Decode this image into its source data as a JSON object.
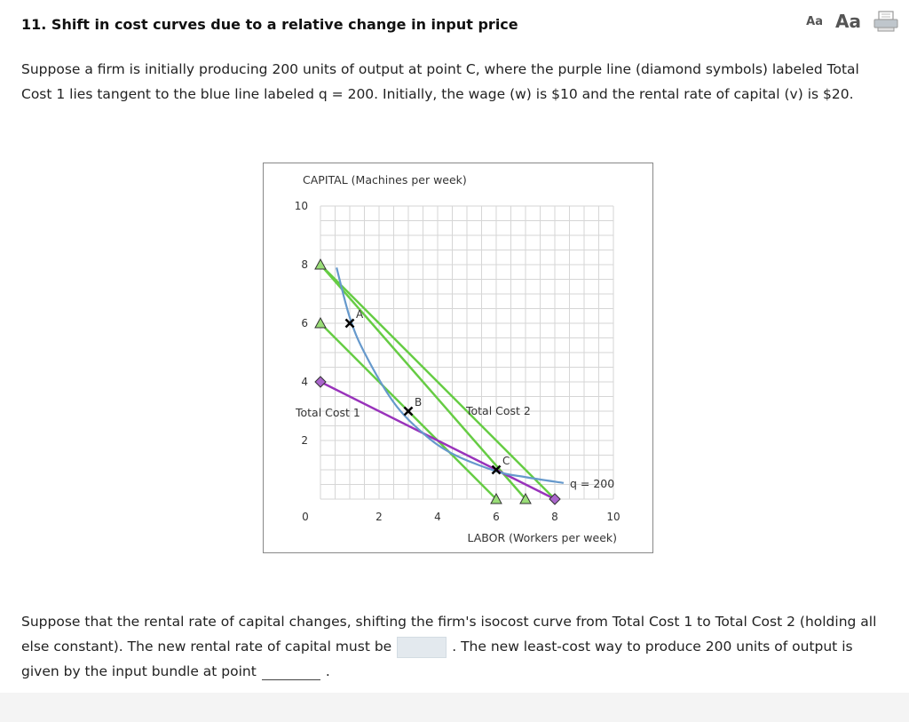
{
  "header": {
    "title": "11. Shift in cost curves due to a relative change in input price",
    "font_small_label": "Aa",
    "font_large_label": "Aa",
    "print_icon": "print-icon"
  },
  "intro_text": "Suppose a firm is initially producing 200 units of output at point C, where the purple line (diamond symbols) labeled Total Cost 1 lies tangent to the blue line labeled q = 200. Initially, the wage (w) is $10 and the rental rate of capital (v) is $20.",
  "question": {
    "part1": "Suppose that the rental rate of capital changes, shifting the firm's isocost curve from Total Cost 1 to Total Cost 2 (holding all else constant). The new rental rate of capital must be",
    "part2": ". The new least-cost way to produce 200 units of output is given by the input bundle at point",
    "part3": ".",
    "rental_rate_value": "",
    "point_value": ""
  },
  "chart_data": {
    "type": "line",
    "ylabel": "CAPITAL (Machines per week)",
    "xlabel": "LABOR (Workers per week)",
    "xlim": [
      0,
      10
    ],
    "ylim": [
      0,
      10
    ],
    "x_ticks": [
      "0",
      "2",
      "4",
      "6",
      "8",
      "10"
    ],
    "y_ticks": [
      "0",
      "2",
      "4",
      "6",
      "8",
      "10"
    ],
    "grid": true,
    "colors": {
      "isoquant": "#6699cc",
      "total_cost_1": "#9933bb",
      "green_lines": "#66cc44",
      "green_marker": "#99dd77",
      "diamond": "#aa66cc"
    },
    "isoquant": {
      "label": "q = 200",
      "points": [
        [
          0.55,
          7.9
        ],
        [
          1.0,
          6.2
        ],
        [
          1.5,
          5.0
        ],
        [
          2.5,
          3.3
        ],
        [
          3.5,
          2.25
        ],
        [
          4.5,
          1.55
        ],
        [
          6.0,
          0.95
        ],
        [
          7.0,
          0.75
        ],
        [
          8.3,
          0.55
        ]
      ]
    },
    "total_cost_1": {
      "label": "Total Cost 1",
      "points": [
        [
          0,
          4
        ],
        [
          8,
          0
        ]
      ]
    },
    "total_cost_2_label": "Total Cost 2",
    "green_lines": [
      {
        "points": [
          [
            0,
            8
          ],
          [
            8,
            0
          ]
        ]
      },
      {
        "points": [
          [
            0,
            6
          ],
          [
            6,
            0
          ]
        ]
      },
      {
        "points": [
          [
            0,
            8
          ],
          [
            7,
            0
          ]
        ]
      }
    ],
    "points": [
      {
        "label": "A",
        "x": 1,
        "y": 6
      },
      {
        "label": "B",
        "x": 3,
        "y": 3
      },
      {
        "label": "C",
        "x": 6,
        "y": 1
      }
    ],
    "triangle_markers": [
      [
        0,
        8
      ],
      [
        0,
        6
      ],
      [
        6,
        0
      ],
      [
        7,
        0
      ]
    ],
    "diamond_markers": [
      [
        0,
        4
      ],
      [
        8,
        0
      ]
    ]
  }
}
